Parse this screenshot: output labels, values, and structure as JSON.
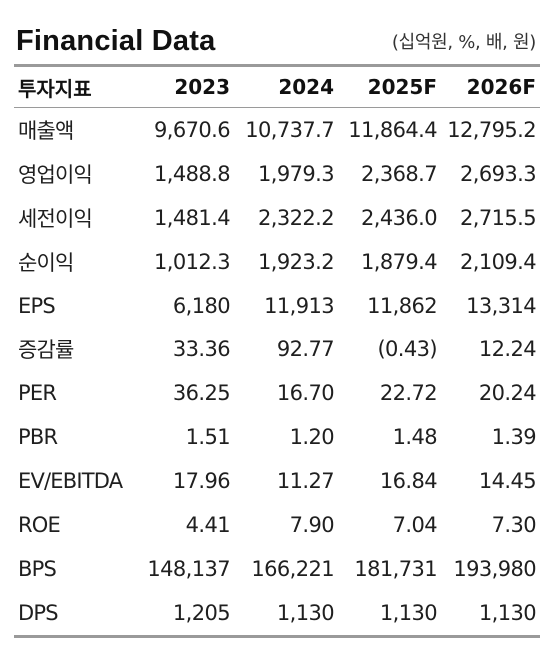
{
  "header": {
    "title": "Financial Data",
    "unit": "(십억원, %, 배, 원)"
  },
  "table": {
    "columns": [
      "투자지표",
      "2023",
      "2024",
      "2025F",
      "2026F"
    ],
    "rows": [
      {
        "label": "매출액",
        "values": [
          "9,670.6",
          "10,737.7",
          "11,864.4",
          "12,795.2"
        ]
      },
      {
        "label": "영업이익",
        "values": [
          "1,488.8",
          "1,979.3",
          "2,368.7",
          "2,693.3"
        ]
      },
      {
        "label": "세전이익",
        "values": [
          "1,481.4",
          "2,322.2",
          "2,436.0",
          "2,715.5"
        ]
      },
      {
        "label": "순이익",
        "values": [
          "1,012.3",
          "1,923.2",
          "1,879.4",
          "2,109.4"
        ]
      },
      {
        "label": "EPS",
        "values": [
          "6,180",
          "11,913",
          "11,862",
          "13,314"
        ]
      },
      {
        "label": "증감률",
        "values": [
          "33.36",
          "92.77",
          "(0.43)",
          "12.24"
        ]
      },
      {
        "label": "PER",
        "values": [
          "36.25",
          "16.70",
          "22.72",
          "20.24"
        ]
      },
      {
        "label": "PBR",
        "values": [
          "1.51",
          "1.20",
          "1.48",
          "1.39"
        ]
      },
      {
        "label": "EV/EBITDA",
        "values": [
          "17.96",
          "11.27",
          "16.84",
          "14.45"
        ]
      },
      {
        "label": "ROE",
        "values": [
          "4.41",
          "7.90",
          "7.04",
          "7.30"
        ]
      },
      {
        "label": "BPS",
        "values": [
          "148,137",
          "166,221",
          "181,731",
          "193,980"
        ]
      },
      {
        "label": "DPS",
        "values": [
          "1,205",
          "1,130",
          "1,130",
          "1,130"
        ]
      }
    ]
  }
}
